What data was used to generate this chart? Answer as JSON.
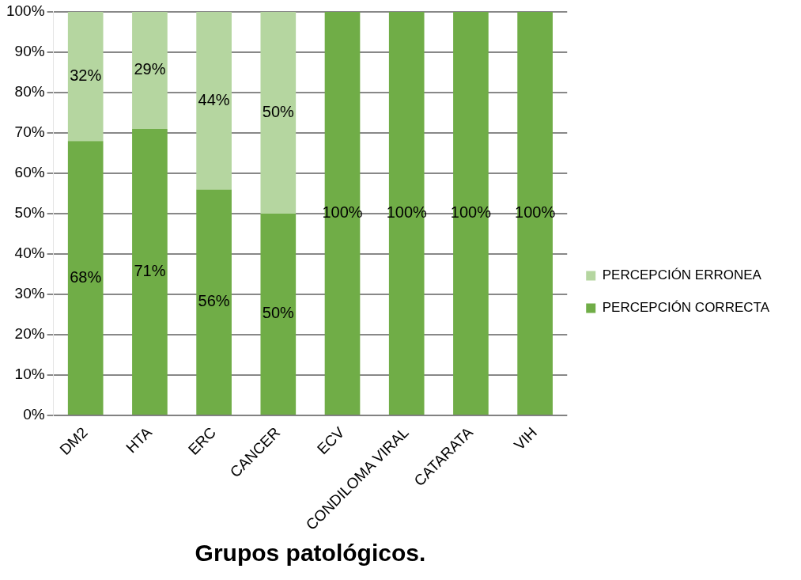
{
  "chart_data": {
    "type": "bar",
    "stacked": true,
    "xlabel": "Grupos patológicos.",
    "categories": [
      "DM2",
      "HTA",
      "ERC",
      "CANCER",
      "ECV",
      "CONDILOMA VIRAL",
      "CATARATA",
      "VIH"
    ],
    "series": [
      {
        "name": "PERCEPCIÓN CORRECTA",
        "color": "#70ad47",
        "values": [
          68,
          71,
          56,
          50,
          100,
          100,
          100,
          100
        ],
        "value_labels": [
          "68%",
          "71%",
          "56%",
          "50%",
          "100%",
          "100%",
          "100%",
          "100%"
        ]
      },
      {
        "name": "PERCEPCIÓN ERRONEA",
        "color": "#b5d6a0",
        "values": [
          32,
          29,
          44,
          50,
          null,
          null,
          null,
          null
        ],
        "value_labels": [
          "32%",
          "29%",
          "44%",
          "50%",
          null,
          null,
          null,
          null
        ]
      }
    ],
    "ylim": [
      0,
      100
    ],
    "yticks": [
      {
        "value": 0,
        "label": "0%"
      },
      {
        "value": 10,
        "label": "10%"
      },
      {
        "value": 20,
        "label": "20%"
      },
      {
        "value": 30,
        "label": "30%"
      },
      {
        "value": 40,
        "label": "40%"
      },
      {
        "value": 50,
        "label": "50%"
      },
      {
        "value": 60,
        "label": "60%"
      },
      {
        "value": 70,
        "label": "70%"
      },
      {
        "value": 80,
        "label": "80%"
      },
      {
        "value": 90,
        "label": "90%"
      },
      {
        "value": 100,
        "label": "100%"
      }
    ],
    "grid": "y",
    "legend": "right"
  }
}
